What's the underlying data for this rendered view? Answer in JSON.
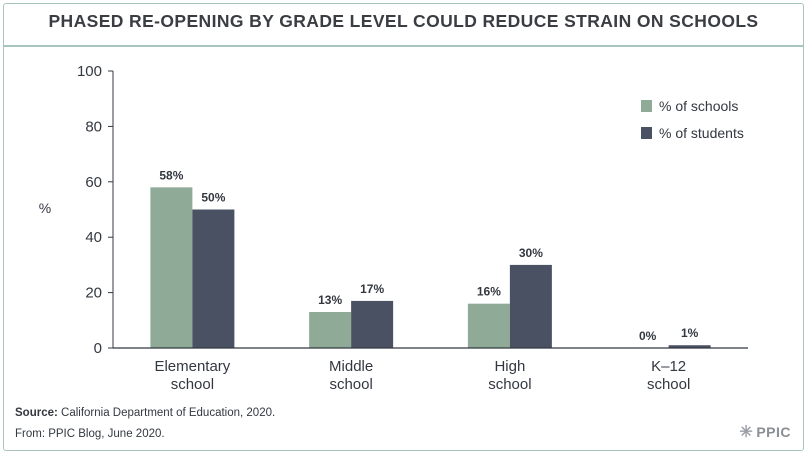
{
  "title": "PHASED RE-OPENING BY GRADE LEVEL COULD REDUCE STRAIN ON SCHOOLS",
  "source_label": "Source:",
  "source_text": "California Department of Education, 2020.",
  "from_text": "From: PPIC Blog, June 2020.",
  "logo_text": "PPIC",
  "logo_icon": "sunburst-icon",
  "colors": {
    "schools": "#8fab98",
    "students": "#4a5163",
    "axis": "#333840",
    "text": "#333840"
  },
  "chart_data": {
    "type": "bar",
    "title": "PHASED RE-OPENING BY GRADE LEVEL COULD REDUCE STRAIN ON SCHOOLS",
    "ylabel": "%",
    "xlabel": "",
    "ylim": [
      0,
      100
    ],
    "yticks": [
      0,
      20,
      40,
      60,
      80,
      100
    ],
    "grid": false,
    "legend_position": "top-right",
    "categories": [
      [
        "Elementary",
        "school"
      ],
      [
        "Middle",
        "school"
      ],
      [
        "High",
        "school"
      ],
      [
        "K–12",
        "school"
      ]
    ],
    "series": [
      {
        "name": "% of schools",
        "values": [
          58,
          13,
          16,
          0
        ],
        "labels": [
          "58%",
          "13%",
          "16%",
          "0%"
        ]
      },
      {
        "name": "% of students",
        "values": [
          50,
          17,
          30,
          1
        ],
        "labels": [
          "50%",
          "17%",
          "30%",
          "1%"
        ]
      }
    ]
  }
}
